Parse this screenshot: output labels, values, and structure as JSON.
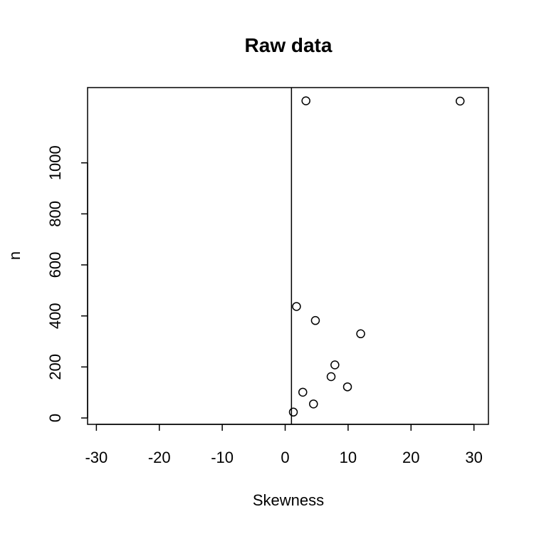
{
  "chart_data": {
    "type": "scatter",
    "title": "Raw data",
    "xlabel": "Skewness",
    "ylabel": "n",
    "xlim": [
      -31.4,
      32.3
    ],
    "ylim": [
      -25,
      1295
    ],
    "xticks": [
      -30,
      -20,
      -10,
      0,
      10,
      20,
      30
    ],
    "yticks": [
      0,
      200,
      400,
      600,
      800,
      1000
    ],
    "reference_line": {
      "orientation": "vertical",
      "x": 1.0
    },
    "grid": false,
    "legend": "none",
    "marker": "open-circle",
    "points": [
      {
        "x": 3.3,
        "y": 1243
      },
      {
        "x": 27.8,
        "y": 1242
      },
      {
        "x": 1.8,
        "y": 437
      },
      {
        "x": 4.8,
        "y": 382
      },
      {
        "x": 12.0,
        "y": 330
      },
      {
        "x": 7.9,
        "y": 208
      },
      {
        "x": 7.3,
        "y": 162
      },
      {
        "x": 9.9,
        "y": 122
      },
      {
        "x": 2.8,
        "y": 101
      },
      {
        "x": 4.5,
        "y": 55
      },
      {
        "x": 1.3,
        "y": 23
      }
    ]
  }
}
